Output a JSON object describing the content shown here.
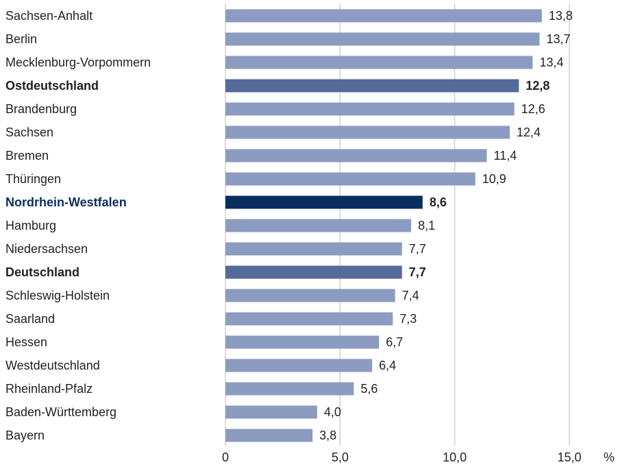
{
  "chart_data": {
    "type": "bar",
    "orientation": "horizontal",
    "categories": [
      "Sachsen-Anhalt",
      "Berlin",
      "Mecklenburg-Vorpommern",
      "Ostdeutschland",
      "Brandenburg",
      "Sachsen",
      "Bremen",
      "Thüringen",
      "Nordrhein-Westfalen",
      "Hamburg",
      "Niedersachsen",
      "Deutschland",
      "Schleswig-Holstein",
      "Saarland",
      "Hessen",
      "Westdeutschland",
      "Rheinland-Pfalz",
      "Baden-Württemberg",
      "Bayern"
    ],
    "values": [
      13.8,
      13.7,
      13.4,
      12.8,
      12.6,
      12.4,
      11.4,
      10.9,
      8.6,
      8.1,
      7.7,
      7.7,
      7.4,
      7.3,
      6.7,
      6.4,
      5.6,
      4.0,
      3.8
    ],
    "value_labels": [
      "13,8",
      "13,7",
      "13,4",
      "12,8",
      "12,6",
      "12,4",
      "11,4",
      "10,9",
      "8,6",
      "8,1",
      "7,7",
      "7,7",
      "7,4",
      "7,3",
      "6,7",
      "6,4",
      "5,6",
      "4,0",
      "3,8"
    ],
    "colors": [
      "#8c9bc0",
      "#8c9bc0",
      "#8c9bc0",
      "#55699a",
      "#8c9bc0",
      "#8c9bc0",
      "#8c9bc0",
      "#8c9bc0",
      "#0a2d5f",
      "#8c9bc0",
      "#8c9bc0",
      "#55699a",
      "#8c9bc0",
      "#8c9bc0",
      "#8c9bc0",
      "#8c9bc0",
      "#8c9bc0",
      "#8c9bc0",
      "#8c9bc0"
    ],
    "label_colors": [
      "#222222",
      "#222222",
      "#222222",
      "#222222",
      "#222222",
      "#222222",
      "#222222",
      "#222222",
      "#0a2d5f",
      "#222222",
      "#222222",
      "#222222",
      "#222222",
      "#222222",
      "#222222",
      "#222222",
      "#222222",
      "#222222",
      "#222222"
    ],
    "bold": [
      false,
      false,
      false,
      true,
      false,
      false,
      false,
      false,
      true,
      false,
      false,
      true,
      false,
      false,
      false,
      false,
      false,
      false,
      false
    ],
    "xlim": [
      0,
      15
    ],
    "xticks": [
      0,
      {
        "value": 5,
        "label": "5,0"
      },
      {
        "value": 10,
        "label": "10,0"
      },
      {
        "value": 15,
        "label": "15,0"
      }
    ],
    "xlabel": "%",
    "grid": true
  }
}
